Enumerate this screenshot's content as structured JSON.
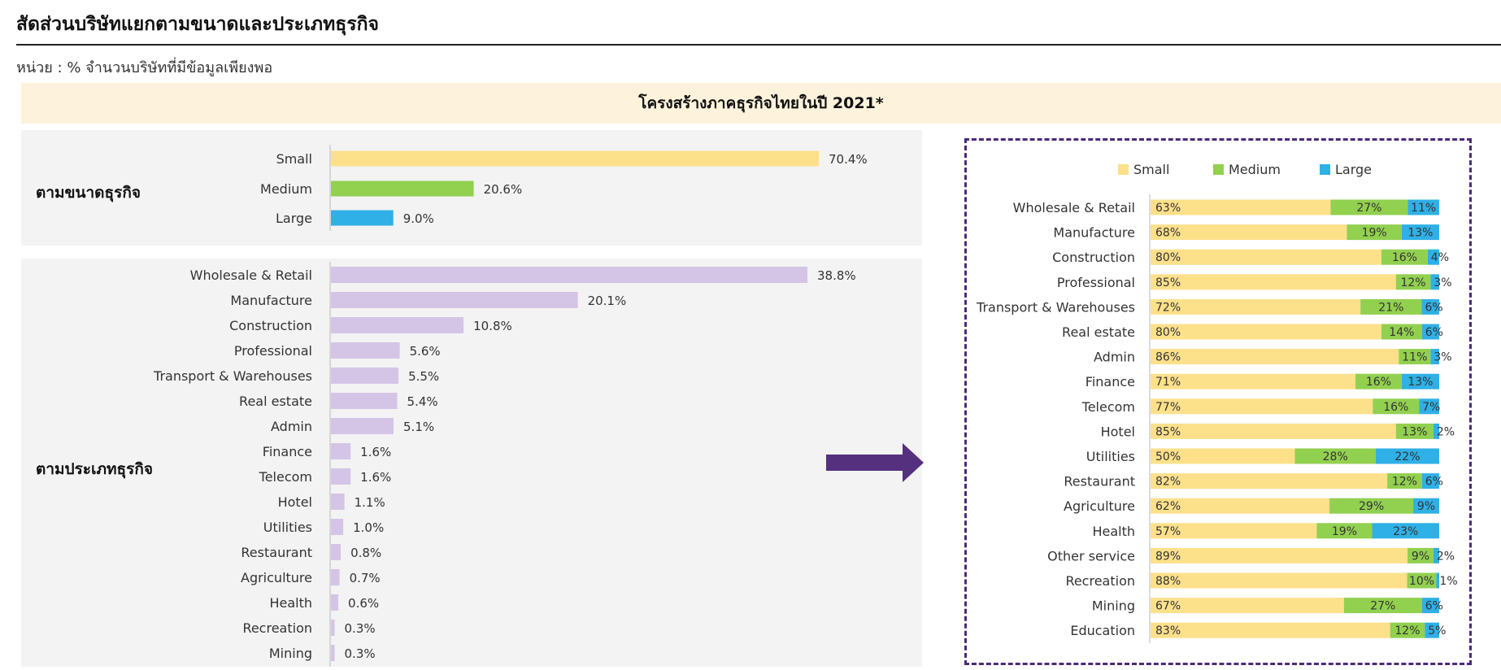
{
  "header": {
    "title": "สัดส่วนบริษัทแยกตามขนาดและประเภทธุรกิจ",
    "unit": "หน่วย : % จำนวนบริษัทที่มีข้อมูลเพียงพอ",
    "banner": "โครงสร้างภาคธุรกิจไทยในปี 2021*"
  },
  "panels": {
    "size_label": "ตามขนาดธุรกิจ",
    "type_label": "ตามประเภทธุรกิจ"
  },
  "colors": {
    "small": "#fde08a",
    "medium": "#92d050",
    "large": "#2fb0e6",
    "type_bar": "#d4c5e6",
    "arrow": "#55307f",
    "frame": "#4b2a7b"
  },
  "chart_data": [
    {
      "type": "bar",
      "orientation": "horizontal",
      "categories": [
        "Small",
        "Medium",
        "Large"
      ],
      "values": [
        70.4,
        20.6,
        9.0
      ],
      "labels": [
        "70.4%",
        "20.6%",
        "9.0%"
      ],
      "xlim": [
        0,
        100
      ]
    },
    {
      "type": "bar",
      "orientation": "horizontal",
      "categories": [
        "Wholesale & Retail",
        "Manufacture",
        "Construction",
        "Professional",
        "Transport & Warehouses",
        "Real estate",
        "Admin",
        "Finance",
        "Telecom",
        "Hotel",
        "Utilities",
        "Restaurant",
        "Agriculture",
        "Health",
        "Recreation",
        "Mining"
      ],
      "values": [
        38.8,
        20.1,
        10.8,
        5.6,
        5.5,
        5.4,
        5.1,
        1.6,
        1.6,
        1.1,
        1.0,
        0.8,
        0.7,
        0.6,
        0.3,
        0.3
      ],
      "labels": [
        "38.8%",
        "20.1%",
        "10.8%",
        "5.6%",
        "5.5%",
        "5.4%",
        "5.1%",
        "1.6%",
        "1.6%",
        "1.1%",
        "1.0%",
        "0.8%",
        "0.7%",
        "0.6%",
        "0.3%",
        "0.3%"
      ],
      "xlim": [
        0,
        50
      ]
    },
    {
      "type": "bar",
      "orientation": "horizontal",
      "stacked": true,
      "legend": "top",
      "categories": [
        "Wholesale & Retail",
        "Manufacture",
        "Construction",
        "Professional",
        "Transport & Warehouses",
        "Real estate",
        "Admin",
        "Finance",
        "Telecom",
        "Hotel",
        "Utilities",
        "Restaurant",
        "Agriculture",
        "Health",
        "Other service",
        "Recreation",
        "Mining",
        "Education"
      ],
      "series": [
        {
          "name": "Small",
          "values": [
            63,
            68,
            80,
            85,
            72,
            80,
            86,
            71,
            77,
            85,
            50,
            82,
            62,
            57,
            89,
            88,
            67,
            83
          ],
          "labels": [
            "63%",
            "68%",
            "80%",
            "85%",
            "72%",
            "80%",
            "86%",
            "71%",
            "77%",
            "85%",
            "50%",
            "82%",
            "62%",
            "57%",
            "89%",
            "88%",
            "67%",
            "83%"
          ]
        },
        {
          "name": "Medium",
          "values": [
            27,
            19,
            16,
            12,
            21,
            14,
            11,
            16,
            16,
            13,
            28,
            12,
            29,
            19,
            9,
            10,
            27,
            12
          ],
          "labels": [
            "27%",
            "19%",
            "16%",
            "12%",
            "21%",
            "14%",
            "11%",
            "16%",
            "16%",
            "13%",
            "28%",
            "12%",
            "29%",
            "19%",
            "9%",
            "10%",
            "27%",
            "12%"
          ]
        },
        {
          "name": "Large",
          "values": [
            11,
            13,
            4,
            3,
            6,
            6,
            3,
            13,
            7,
            2,
            22,
            6,
            9,
            23,
            2,
            1,
            6,
            5
          ],
          "labels": [
            "11%",
            "13%",
            "4%",
            "3%",
            "6%",
            "6%",
            "3%",
            "13%",
            "7%",
            "2%",
            "22%",
            "6%",
            "9%",
            "23%",
            "2%",
            "1%",
            "6%",
            "5%"
          ]
        }
      ],
      "xlim": [
        0,
        100
      ]
    }
  ]
}
